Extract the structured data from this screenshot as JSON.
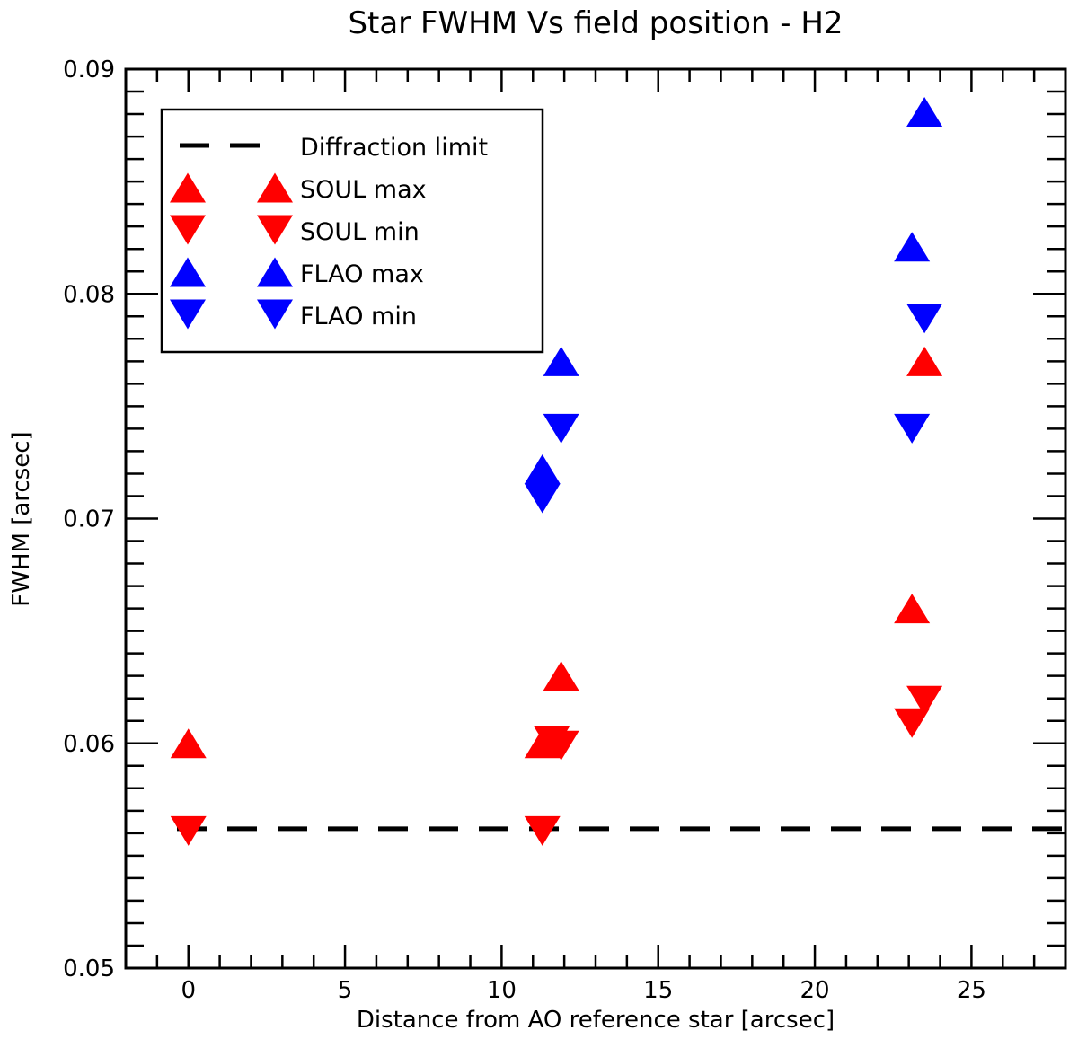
{
  "chart_data": {
    "type": "scatter",
    "title": "Star FWHM Vs field position - H2",
    "xlabel": "Distance from AO reference star [arcsec]",
    "ylabel": "FWHM [arcsec]",
    "xlim": [
      -2,
      28
    ],
    "ylim": [
      0.05,
      0.09
    ],
    "x_ticks": [
      0,
      5,
      10,
      15,
      20,
      25
    ],
    "x_tick_labels": [
      "0",
      "5",
      "10",
      "15",
      "20",
      "25"
    ],
    "y_ticks": [
      0.05,
      0.06,
      0.07,
      0.08,
      0.09
    ],
    "y_tick_labels": [
      "0.05",
      "0.06",
      "0.07",
      "0.08",
      "0.09"
    ],
    "grid": false,
    "legend_position": "top-left",
    "reference_line": {
      "name": "Diffraction limit",
      "y": 0.0562,
      "style": "dashed",
      "color": "#000000"
    },
    "series": [
      {
        "name": "SOUL max",
        "marker": "triangle-up",
        "color": "#ff0000",
        "points": [
          [
            0,
            0.06
          ],
          [
            11.3,
            0.06
          ],
          [
            11.9,
            0.063
          ],
          [
            23.1,
            0.066
          ],
          [
            23.5,
            0.077
          ]
        ]
      },
      {
        "name": "SOUL min",
        "marker": "triangle-down",
        "color": "#ff0000",
        "points": [
          [
            0,
            0.0561
          ],
          [
            11.3,
            0.0561
          ],
          [
            11.6,
            0.0601
          ],
          [
            11.9,
            0.0599
          ],
          [
            23.1,
            0.0609
          ],
          [
            23.5,
            0.0619
          ]
        ]
      },
      {
        "name": "FLAO max",
        "marker": "triangle-up",
        "color": "#0000ff",
        "points": [
          [
            11.3,
            0.0722
          ],
          [
            11.9,
            0.077
          ],
          [
            23.1,
            0.0821
          ],
          [
            23.5,
            0.0881
          ]
        ]
      },
      {
        "name": "FLAO min",
        "marker": "triangle-down",
        "color": "#0000ff",
        "points": [
          [
            11.3,
            0.0709
          ],
          [
            11.9,
            0.074
          ],
          [
            23.1,
            0.074
          ],
          [
            23.5,
            0.0789
          ]
        ]
      }
    ]
  }
}
